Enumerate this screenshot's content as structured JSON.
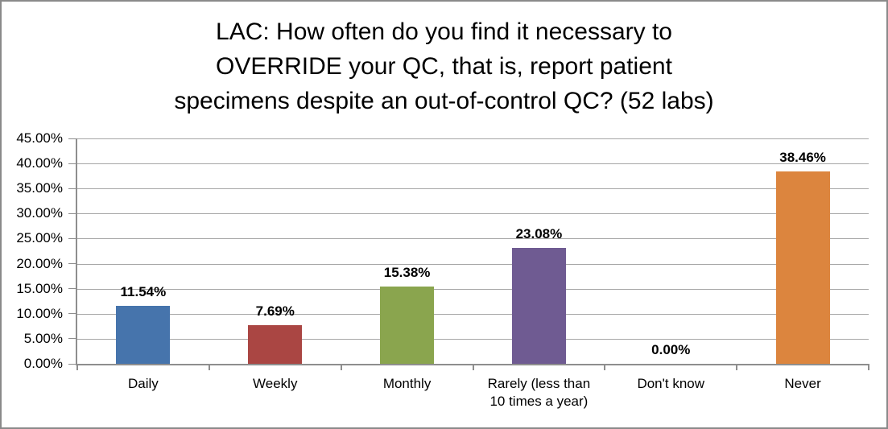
{
  "chart_data": {
    "type": "bar",
    "title": "LAC: How often do you find it necessary to OVERRIDE your QC, that is, report patient specimens despite an out-of-control QC? (52 labs)",
    "title_lines": [
      "LAC: How often do you find it necessary to",
      "OVERRIDE your QC, that is, report patient",
      "specimens despite an out-of-control QC? (52 labs)"
    ],
    "categories": [
      "Daily",
      "Weekly",
      "Monthly",
      "Rarely (less than\n10 times a year)",
      "Don't know",
      "Never"
    ],
    "values": [
      11.54,
      7.69,
      15.38,
      23.08,
      0,
      38.46
    ],
    "value_labels": [
      "11.54%",
      "7.69%",
      "15.38%",
      "23.08%",
      "0.00%",
      "38.46%"
    ],
    "bar_colors": [
      "#4674AC",
      "#AA4643",
      "#8AA54E",
      "#6F5B92",
      null,
      "#DC853E"
    ],
    "ylim": [
      0,
      45
    ],
    "y_tick_step": 5,
    "y_tick_labels": [
      "45.00%",
      "40.00%",
      "35.00%",
      "30.00%",
      "25.00%",
      "20.00%",
      "15.00%",
      "10.00%",
      "5.00%",
      "0.00%"
    ],
    "xlabel": "",
    "ylabel": "",
    "grid": true,
    "legend": false
  },
  "style_colors": {
    "gridline": "#A6A6A6",
    "axis": "#8E8E8E",
    "frame_border": "#8A8A8A",
    "background": "#FFFFFF",
    "text": "#000000"
  }
}
